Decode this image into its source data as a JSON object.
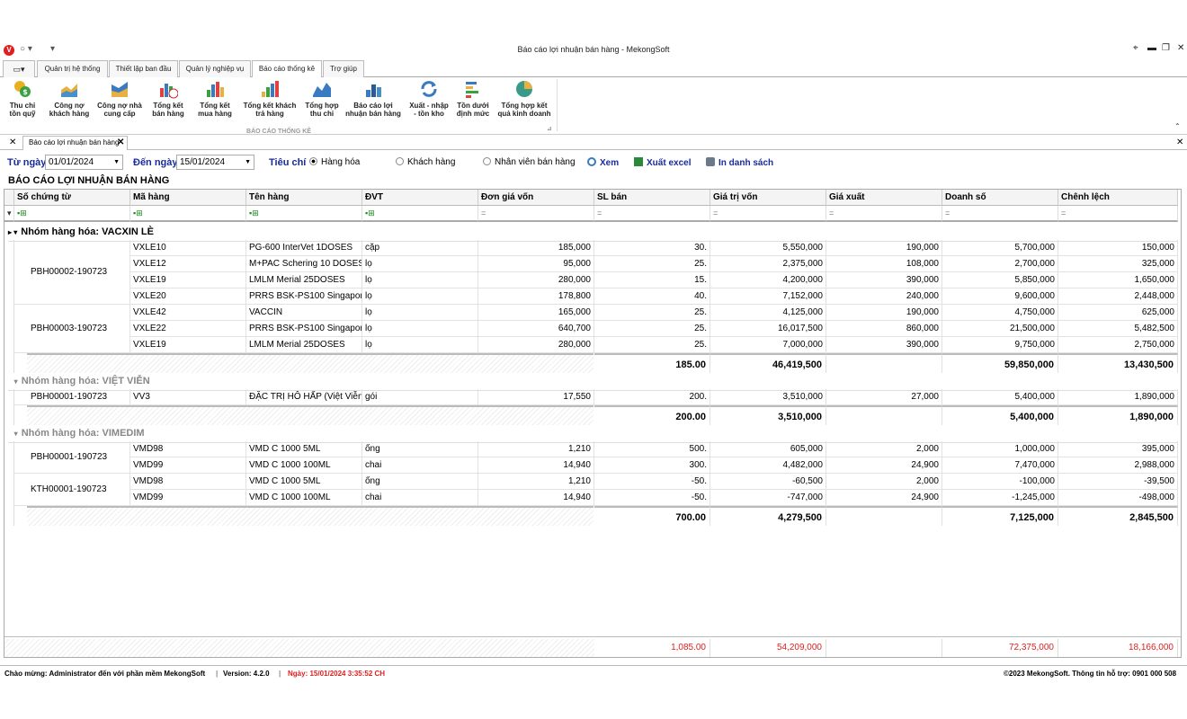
{
  "window": {
    "title": "Báo cáo lợi nhuận bán hàng - MekongSoft",
    "logo": "V"
  },
  "ribbon_tabs": [
    {
      "label": ""
    },
    {
      "label": "Quản trị hệ thống"
    },
    {
      "label": "Thiết lập ban đầu"
    },
    {
      "label": "Quản lý nghiệp vụ"
    },
    {
      "label": "Báo cáo thống kê"
    },
    {
      "label": "Trợ giúp"
    }
  ],
  "ribbon": {
    "group": "BÁO CÁO THỐNG KÊ",
    "buttons": [
      {
        "l1": "Thu chi",
        "l2": "tồn quỹ",
        "icon": "coins-icon"
      },
      {
        "l1": "Công nợ",
        "l2": "khách hàng",
        "icon": "chart-area-icon"
      },
      {
        "l1": "Công nợ nhà",
        "l2": "cung cấp",
        "icon": "chart-area-icon"
      },
      {
        "l1": "Tổng kết",
        "l2": "bán hàng",
        "icon": "bar-chart-clock-icon"
      },
      {
        "l1": "Tổng kết",
        "l2": "mua hàng",
        "icon": "bar-chart-icon"
      },
      {
        "l1": "Tổng kết khách",
        "l2": "trả hàng",
        "icon": "bar-chart-icon"
      },
      {
        "l1": "Tổng hợp",
        "l2": "thu chi",
        "icon": "line-chart-icon"
      },
      {
        "l1": "Báo cáo lợi",
        "l2": "nhuận bán hàng",
        "icon": "bar-chart-icon"
      },
      {
        "l1": "Xuất - nhập",
        "l2": "- tồn kho",
        "icon": "refresh-icon"
      },
      {
        "l1": "Tồn dưới",
        "l2": "định mức",
        "icon": "list-chart-icon"
      },
      {
        "l1": "Tổng hợp kết",
        "l2": "quả kinh doanh",
        "icon": "pie-chart-icon"
      }
    ]
  },
  "doc_tab": {
    "label": "Báo cáo lợi nhuận bán hàng"
  },
  "filter": {
    "from_label": "Từ ngày",
    "from_value": "01/01/2024",
    "to_label": "Đến ngày",
    "to_value": "15/01/2024",
    "criteria_label": "Tiêu chí",
    "radios": [
      {
        "label": "Hàng hóa",
        "checked": true
      },
      {
        "label": "Khách hàng",
        "checked": false
      },
      {
        "label": "Nhân viên bán hàng",
        "checked": false
      }
    ],
    "view_label": "Xem",
    "excel_label": "Xuất excel",
    "print_label": "In danh sách"
  },
  "report_title": "BÁO CÁO LỢI NHUẬN BÁN HÀNG",
  "columns": [
    "Số chứng từ",
    "Mã hàng",
    "Tên hàng",
    "ĐVT",
    "Đơn giá vốn",
    "SL bán",
    "Giá trị vốn",
    "Giá xuất",
    "Doanh số",
    "Chênh lệch"
  ],
  "groups": [
    {
      "name": "Nhóm hàng hóa: VACXIN LÈ",
      "docs": [
        {
          "doc": "PBH00002-190723",
          "rows": [
            [
              "VXLE10",
              "PG-600 InterVet 1DOSES",
              "cặp",
              "185,000",
              "30.",
              "5,550,000",
              "190,000",
              "5,700,000",
              "150,000"
            ],
            [
              "VXLE12",
              "M+PAC Schering 10 DOSES",
              "lọ",
              "95,000",
              "25.",
              "2,375,000",
              "108,000",
              "2,700,000",
              "325,000"
            ],
            [
              "VXLE19",
              "LMLM Merial 25DOSES",
              "lọ",
              "280,000",
              "15.",
              "4,200,000",
              "390,000",
              "5,850,000",
              "1,650,000"
            ],
            [
              "VXLE20",
              "PRRS BSK-PS100 Singapor...",
              "lọ",
              "178,800",
              "40.",
              "7,152,000",
              "240,000",
              "9,600,000",
              "2,448,000"
            ]
          ]
        },
        {
          "doc": "PBH00003-190723",
          "rows": [
            [
              "VXLE42",
              "VACCIN",
              "lọ",
              "165,000",
              "25.",
              "4,125,000",
              "190,000",
              "4,750,000",
              "625,000"
            ],
            [
              "VXLE22",
              "PRRS BSK-PS100 Singapor...",
              "lọ",
              "640,700",
              "25.",
              "16,017,500",
              "860,000",
              "21,500,000",
              "5,482,500"
            ],
            [
              "VXLE19",
              "LMLM Merial 25DOSES",
              "lọ",
              "280,000",
              "25.",
              "7,000,000",
              "390,000",
              "9,750,000",
              "2,750,000"
            ]
          ]
        }
      ],
      "sum": {
        "qty": "185.00",
        "cost": "46,419,500",
        "sales": "59,850,000",
        "diff": "13,430,500"
      }
    },
    {
      "name": "Nhóm hàng hóa: VIỆT VIỄN",
      "docs": [
        {
          "doc": "PBH00001-190723",
          "rows": [
            [
              "VV3",
              "ĐẶC TRỊ HÔ HẤP (Việt Viễn...",
              "gói",
              "17,550",
              "200.",
              "3,510,000",
              "27,000",
              "5,400,000",
              "1,890,000"
            ]
          ]
        }
      ],
      "sum": {
        "qty": "200.00",
        "cost": "3,510,000",
        "sales": "5,400,000",
        "diff": "1,890,000"
      }
    },
    {
      "name": "Nhóm hàng hóa: VIMEDIM",
      "docs": [
        {
          "doc": "PBH00001-190723",
          "rows": [
            [
              "VMD98",
              "VMD C 1000 5ML",
              "ống",
              "1,210",
              "500.",
              "605,000",
              "2,000",
              "1,000,000",
              "395,000"
            ],
            [
              "VMD99",
              "VMD C 1000 100ML",
              "chai",
              "14,940",
              "300.",
              "4,482,000",
              "24,900",
              "7,470,000",
              "2,988,000"
            ]
          ]
        },
        {
          "doc": "KTH00001-190723",
          "rows": [
            [
              "VMD98",
              "VMD C 1000 5ML",
              "ống",
              "1,210",
              "-50.",
              "-60,500",
              "2,000",
              "-100,000",
              "-39,500"
            ],
            [
              "VMD99",
              "VMD C 1000 100ML",
              "chai",
              "14,940",
              "-50.",
              "-747,000",
              "24,900",
              "-1,245,000",
              "-498,000"
            ]
          ]
        }
      ],
      "sum": {
        "qty": "700.00",
        "cost": "4,279,500",
        "sales": "7,125,000",
        "diff": "2,845,500"
      }
    }
  ],
  "totals": {
    "qty": "1,085.00",
    "cost": "54,209,000",
    "sales": "72,375,000",
    "diff": "18,166,000"
  },
  "status": {
    "welcome": "Chào mừng: Administrator đến với phần mềm MekongSoft",
    "version": "Version: 4.2.0",
    "date": "Ngày: 15/01/2024 3:35:52 CH",
    "copyright": "©2023 MekongSoft. Thông tin hỗ trợ: 0901 000 508"
  }
}
